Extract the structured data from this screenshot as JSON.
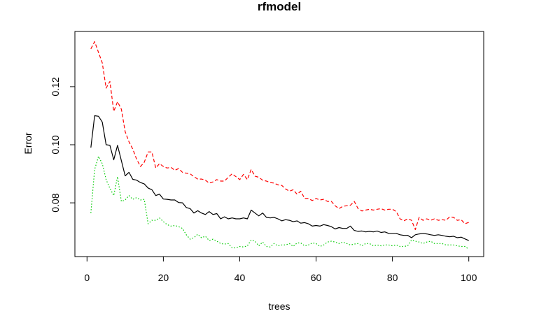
{
  "chart_data": {
    "type": "line",
    "title": "rfmodel",
    "xlabel": "trees",
    "ylabel": "Error",
    "xlim": [
      0,
      100
    ],
    "ylim": [
      0.0615,
      0.139
    ],
    "x_ticks": [
      "0",
      "20",
      "40",
      "60",
      "80",
      "100"
    ],
    "x_tick_values": [
      0,
      20,
      40,
      60,
      80,
      100
    ],
    "y_ticks": [
      "0.08",
      "0.10",
      "0.12"
    ],
    "y_tick_values": [
      0.08,
      0.1,
      0.12
    ],
    "grid": false,
    "legend": "none",
    "x": [
      1,
      2,
      3,
      4,
      5,
      6,
      7,
      8,
      9,
      10,
      11,
      12,
      13,
      14,
      15,
      16,
      17,
      18,
      19,
      20,
      21,
      22,
      23,
      24,
      25,
      26,
      27,
      28,
      29,
      30,
      31,
      32,
      33,
      34,
      35,
      36,
      37,
      38,
      39,
      40,
      41,
      42,
      43,
      44,
      45,
      46,
      47,
      48,
      49,
      50,
      51,
      52,
      53,
      54,
      55,
      56,
      57,
      58,
      59,
      60,
      61,
      62,
      63,
      64,
      65,
      66,
      67,
      68,
      69,
      70,
      71,
      72,
      73,
      74,
      75,
      76,
      77,
      78,
      79,
      80,
      81,
      82,
      83,
      84,
      85,
      86,
      87,
      88,
      89,
      90,
      91,
      92,
      93,
      94,
      95,
      96,
      97,
      98,
      99,
      100
    ],
    "series": [
      {
        "style": "solid",
        "color": "#000000",
        "values": [
          0.099,
          0.11,
          0.1098,
          0.1078,
          0.1,
          0.0998,
          0.0948,
          0.0998,
          0.0945,
          0.0893,
          0.0905,
          0.0881,
          0.0878,
          0.087,
          0.0865,
          0.0851,
          0.0845,
          0.0825,
          0.083,
          0.0813,
          0.0812,
          0.081,
          0.081,
          0.0801,
          0.08,
          0.0784,
          0.078,
          0.0765,
          0.0773,
          0.0765,
          0.076,
          0.077,
          0.076,
          0.0763,
          0.0745,
          0.0752,
          0.0745,
          0.0748,
          0.0745,
          0.0745,
          0.0748,
          0.0745,
          0.0775,
          0.0765,
          0.0755,
          0.0765,
          0.075,
          0.0748,
          0.075,
          0.0745,
          0.0738,
          0.0742,
          0.074,
          0.0735,
          0.0738,
          0.073,
          0.0732,
          0.0728,
          0.072,
          0.0722,
          0.072,
          0.0725,
          0.0722,
          0.0718,
          0.071,
          0.0715,
          0.0712,
          0.0712,
          0.072,
          0.0705,
          0.0702,
          0.0703,
          0.07,
          0.0702,
          0.07,
          0.0703,
          0.0698,
          0.07,
          0.0695,
          0.0695,
          0.0695,
          0.069,
          0.0688,
          0.0688,
          0.068,
          0.069,
          0.0693,
          0.0695,
          0.0693,
          0.069,
          0.0688,
          0.069,
          0.0688,
          0.0685,
          0.0683,
          0.0685,
          0.068,
          0.0682,
          0.0676,
          0.067
        ]
      },
      {
        "style": "dashed",
        "color": "#ff0000",
        "values": [
          0.133,
          0.1355,
          0.1318,
          0.1282,
          0.1195,
          0.1218,
          0.1115,
          0.1148,
          0.1122,
          0.1045,
          0.101,
          0.0985,
          0.095,
          0.0925,
          0.094,
          0.0975,
          0.0975,
          0.092,
          0.0935,
          0.0925,
          0.092,
          0.0922,
          0.0912,
          0.0918,
          0.0905,
          0.0902,
          0.09,
          0.089,
          0.0882,
          0.0882,
          0.0878,
          0.0868,
          0.0872,
          0.088,
          0.0875,
          0.0875,
          0.0888,
          0.09,
          0.089,
          0.088,
          0.0898,
          0.088,
          0.0915,
          0.0892,
          0.0888,
          0.0878,
          0.0875,
          0.087,
          0.0868,
          0.0862,
          0.086,
          0.0848,
          0.084,
          0.0845,
          0.083,
          0.084,
          0.0815,
          0.0815,
          0.0808,
          0.0815,
          0.081,
          0.0812,
          0.0805,
          0.0805,
          0.079,
          0.078,
          0.0788,
          0.079,
          0.0792,
          0.0805,
          0.078,
          0.0772,
          0.0775,
          0.0778,
          0.0775,
          0.0778,
          0.078,
          0.0775,
          0.0778,
          0.0778,
          0.077,
          0.0745,
          0.0738,
          0.0745,
          0.074,
          0.0708,
          0.075,
          0.074,
          0.0745,
          0.074,
          0.0745,
          0.074,
          0.0742,
          0.074,
          0.0752,
          0.075,
          0.074,
          0.0742,
          0.0728,
          0.0733
        ]
      },
      {
        "style": "dotted",
        "color": "#00cc00",
        "values": [
          0.0765,
          0.0915,
          0.096,
          0.0935,
          0.088,
          0.085,
          0.0825,
          0.089,
          0.0805,
          0.081,
          0.0825,
          0.0812,
          0.0818,
          0.081,
          0.0812,
          0.0728,
          0.074,
          0.074,
          0.0748,
          0.0735,
          0.0725,
          0.072,
          0.0722,
          0.0718,
          0.0712,
          0.069,
          0.0675,
          0.068,
          0.0692,
          0.068,
          0.0685,
          0.067,
          0.0675,
          0.0668,
          0.066,
          0.0658,
          0.066,
          0.0645,
          0.0645,
          0.065,
          0.0648,
          0.0652,
          0.0672,
          0.0668,
          0.0652,
          0.0665,
          0.065,
          0.0648,
          0.066,
          0.0652,
          0.0655,
          0.0655,
          0.066,
          0.065,
          0.0662,
          0.0662,
          0.0652,
          0.0655,
          0.0662,
          0.066,
          0.065,
          0.0655,
          0.0665,
          0.0668,
          0.0665,
          0.066,
          0.0665,
          0.066,
          0.0655,
          0.0658,
          0.066,
          0.0652,
          0.066,
          0.066,
          0.0652,
          0.0655,
          0.0652,
          0.0655,
          0.0655,
          0.0652,
          0.0655,
          0.065,
          0.065,
          0.0652,
          0.0672,
          0.0668,
          0.0665,
          0.066,
          0.0665,
          0.0668,
          0.066,
          0.066,
          0.066,
          0.0655,
          0.0655,
          0.0655,
          0.0652,
          0.065,
          0.065,
          0.064
        ]
      }
    ]
  }
}
